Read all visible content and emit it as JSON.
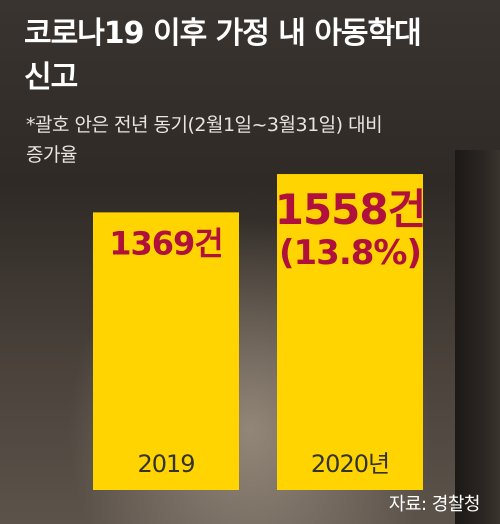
{
  "header": {
    "title_line1": "코로나19 이후 가정 내 아동학대",
    "title_line2": "신고",
    "note_line1": "*괄호 안은 전년 동기(2월1일~3월31일) 대비",
    "note_line2": "증가율"
  },
  "footer": {
    "source": "자료: 경찰청"
  },
  "colors": {
    "bar": "#ffd400",
    "value_text": "#b0103c",
    "category_text": "#333333"
  },
  "chart_data": {
    "type": "bar",
    "title": "코로나19 이후 가정 내 아동학대 신고",
    "categories": [
      "2019",
      "2020년"
    ],
    "values": [
      1369,
      1558
    ],
    "value_labels": [
      "1369건",
      "1558건"
    ],
    "growth_labels": [
      "",
      "(13.8%)"
    ],
    "ylim": [
      0,
      1700
    ],
    "grid": false,
    "legend": "none"
  }
}
